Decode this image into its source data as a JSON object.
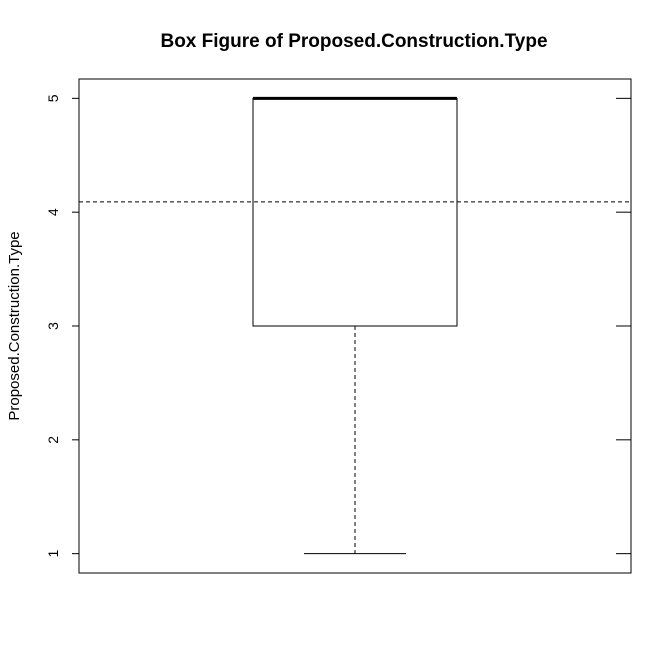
{
  "chart_data": {
    "type": "box",
    "title": "Box Figure of Proposed.Construction.Type",
    "xlabel": "",
    "ylabel": "Proposed.Construction.Type",
    "ylim": [
      0.83,
      5.17
    ],
    "yticks": [
      1,
      2,
      3,
      4,
      5
    ],
    "ytick_labels": [
      "1",
      "2",
      "3",
      "4",
      "5"
    ],
    "box": {
      "min": 1,
      "q1": 3,
      "median": 5,
      "q3": 5,
      "max": 5
    },
    "reference_line": {
      "value": 4.09,
      "style": "dashed"
    },
    "grid": false,
    "legend": "none",
    "colors": {
      "stroke": "#000000",
      "background": "#ffffff"
    }
  }
}
